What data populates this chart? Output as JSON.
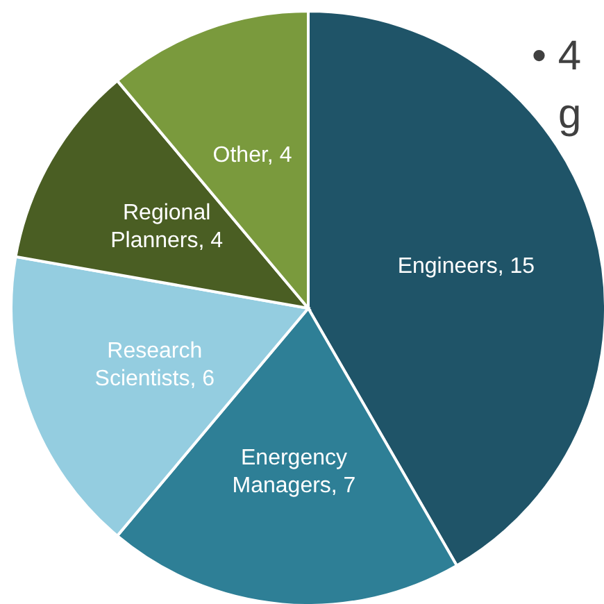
{
  "chart_data": {
    "type": "pie",
    "categories": [
      "Engineers",
      "Energency Managers",
      "Research Scientists",
      "Regional Planners",
      "Other"
    ],
    "values": [
      15,
      7,
      6,
      4,
      4
    ],
    "colors": [
      "#1f5468",
      "#2e7f96",
      "#94cde0",
      "#4a5e23",
      "#7a9a3d"
    ],
    "value_labels": [
      ", 15",
      ", 7",
      ", 6",
      ", 4",
      ", 4"
    ],
    "annotations": [
      "• 4",
      "g"
    ]
  }
}
